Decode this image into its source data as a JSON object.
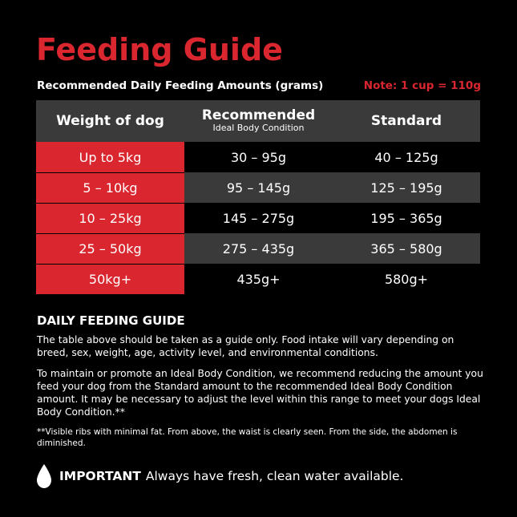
{
  "title": "Feeding Guide",
  "subheading": "Recommended Daily Feeding Amounts (grams)",
  "note": "Note: 1 cup = 110g",
  "table": {
    "headers": {
      "weight": "Weight of dog",
      "recommended": "Recommended",
      "recommended_sub": "Ideal Body Condition",
      "standard": "Standard"
    },
    "rows": [
      {
        "weight": "Up to 5kg",
        "recommended": "30 – 95g",
        "standard": "40 – 125g"
      },
      {
        "weight": "5 – 10kg",
        "recommended": "95 – 145g",
        "standard": "125 – 195g"
      },
      {
        "weight": "10 – 25kg",
        "recommended": "145 – 275g",
        "standard": "195 – 365g"
      },
      {
        "weight": "25 – 50kg",
        "recommended": "275 – 435g",
        "standard": "365 – 580g"
      },
      {
        "weight": "50kg+",
        "recommended": "435g+",
        "standard": "580g+"
      }
    ]
  },
  "guide": {
    "title": "DAILY FEEDING GUIDE",
    "paragraph1": "The table above should be taken as a guide only. Food intake will vary depending on breed, sex, weight, age, activity level, and environmental conditions.",
    "paragraph2": "To maintain or promote an Ideal Body Condition, we recommend reducing the amount you feed your dog from the Standard amount to the recommended Ideal Body Condition amount. It may be necessary to adjust the level within this range to meet your dogs Ideal Body Condition.**",
    "footnote": "**Visible ribs with minimal fat. From above, the waist is clearly seen. From the side, the abdomen is diminished."
  },
  "important": {
    "icon": "water-drop-icon",
    "label": "IMPORTANT",
    "text": "Always have fresh, clean water available."
  },
  "colors": {
    "accent": "#d9262f",
    "background": "#000000",
    "row_alt": "#3a3a3a",
    "text": "#ffffff"
  }
}
